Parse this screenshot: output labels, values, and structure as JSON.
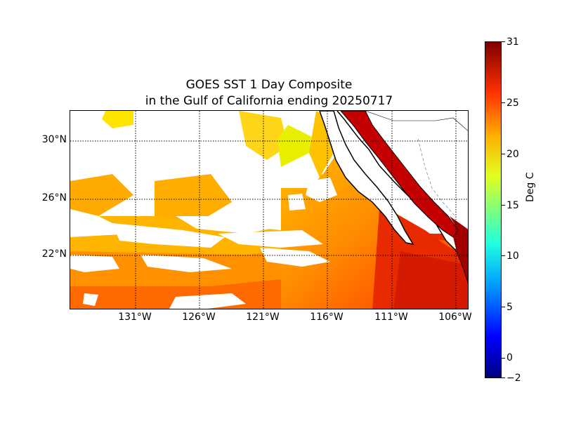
{
  "title": {
    "line1": "GOES SST 1 Day Composite",
    "line2": "in the Gulf of California ending 20250717"
  },
  "map": {
    "lat_labels": [
      "30°N",
      "26°N",
      "22°N"
    ],
    "lon_labels": [
      "131°W",
      "126°W",
      "121°W",
      "116°W",
      "111°W",
      "106°W"
    ],
    "gridlines": "dotted",
    "land_color": "#ffffff",
    "coast_color": "#000000"
  },
  "colorbar": {
    "label": "Deg C",
    "ticks": [
      "31",
      "25",
      "20",
      "15",
      "10",
      "5",
      "0",
      "−2"
    ],
    "min": -2,
    "max": 31,
    "colormap": "jet"
  }
}
